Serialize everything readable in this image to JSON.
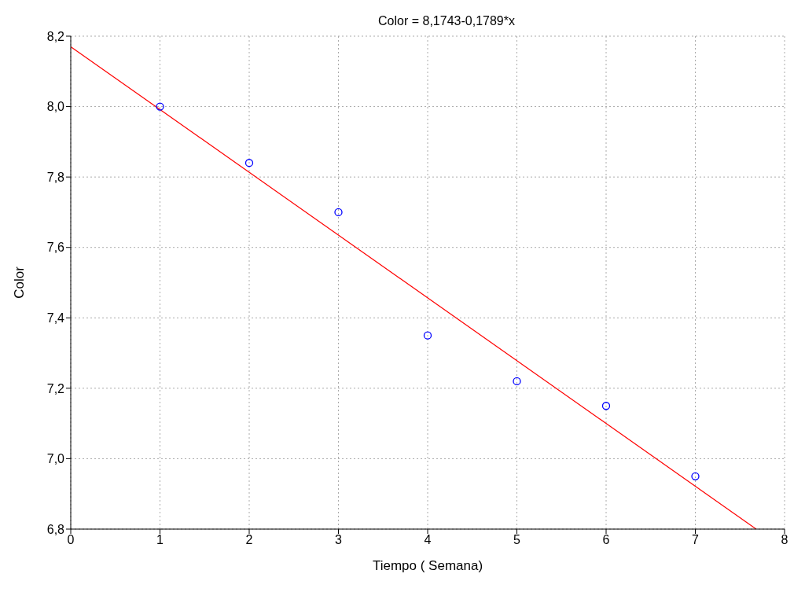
{
  "chart_data": {
    "type": "scatter",
    "title": "Color = 8,1743-0,1789*x",
    "xlabel": "Tiempo ( Semana)",
    "ylabel": "Color",
    "series": [
      {
        "type": "scatter",
        "color": "#0000ff",
        "x": [
          1,
          2,
          3,
          4,
          5,
          6,
          7
        ],
        "values": [
          8.0,
          7.84,
          7.7,
          7.35,
          7.22,
          7.15,
          6.95
        ],
        "marker": "circle"
      },
      {
        "type": "line",
        "color": "#ff0000",
        "x": [
          0,
          7.682
        ],
        "values": [
          8.17,
          6.8
        ],
        "marker": "none"
      }
    ],
    "xlim": [
      0,
      8
    ],
    "xticks": [
      0,
      1,
      2,
      3,
      4,
      5,
      6,
      7,
      8
    ],
    "ylim": [
      6.8,
      8.2
    ],
    "yticks": [
      {
        "value": 6.8,
        "label": "6,8"
      },
      {
        "value": 7.0,
        "label": "7,0"
      },
      {
        "value": 7.2,
        "label": "7,2"
      },
      {
        "value": 7.4,
        "label": "7,4"
      },
      {
        "value": 7.6,
        "label": "7,6"
      },
      {
        "value": 7.8,
        "label": "7,8"
      },
      {
        "value": 8.0,
        "label": "8,0"
      },
      {
        "value": 8.2,
        "label": "8,2"
      }
    ],
    "grid": true
  }
}
